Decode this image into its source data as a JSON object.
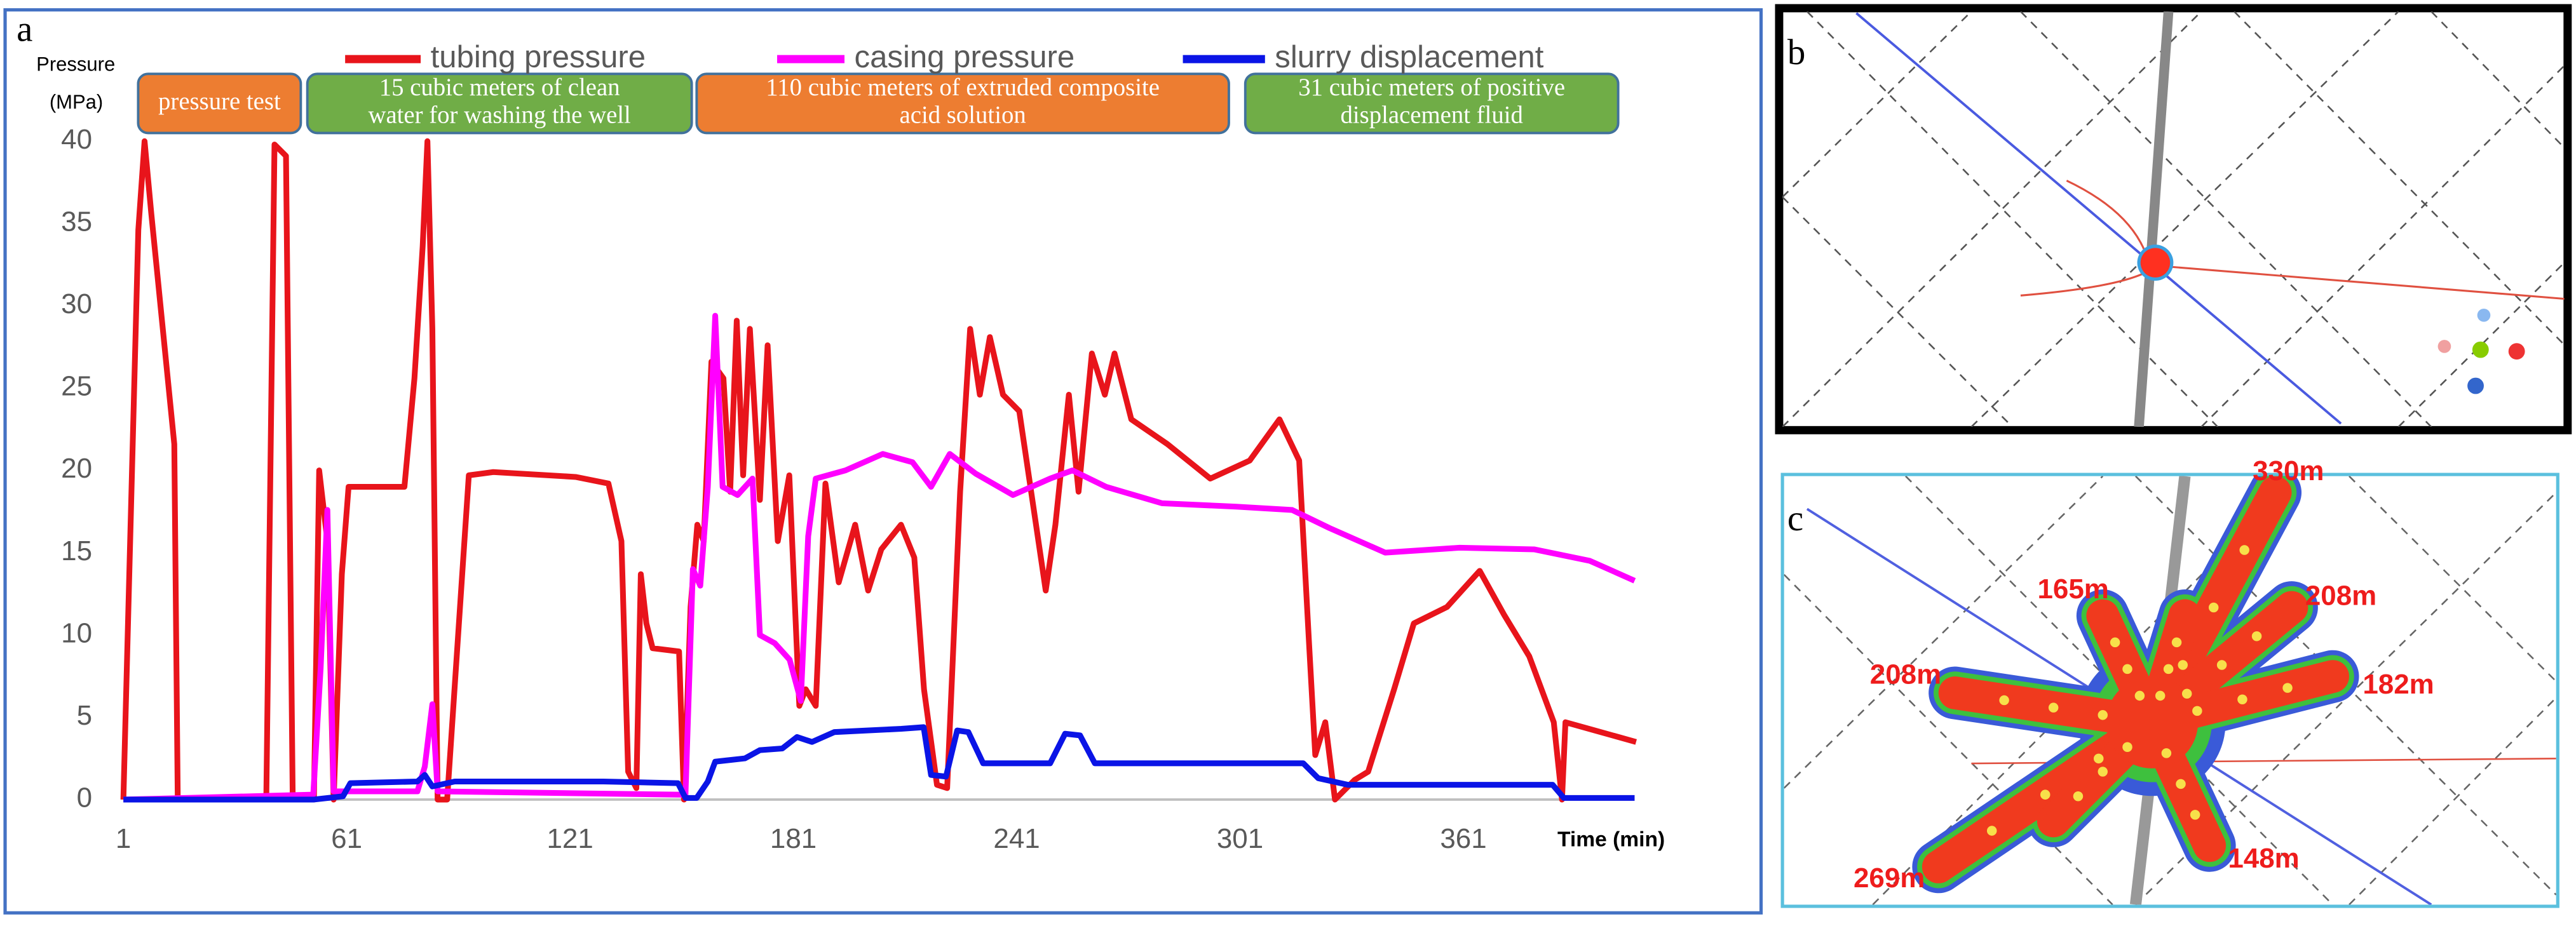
{
  "chart_data": {
    "type": "line",
    "panel": "a",
    "y_label": [
      "Pressure",
      "(MPa)"
    ],
    "x_label": "Time (min)",
    "xlim": [
      1,
      407
    ],
    "ylim": [
      0,
      40
    ],
    "xticks": [
      1,
      61,
      121,
      181,
      241,
      301,
      361
    ],
    "yticks": [
      0,
      5,
      10,
      15,
      20,
      25,
      30,
      35,
      40
    ],
    "phases": [
      {
        "lines": [
          "pressure test"
        ],
        "color": "#ed7d31"
      },
      {
        "lines": [
          "15 cubic meters of clean",
          "water for washing the well"
        ],
        "color": "#70ad47"
      },
      {
        "lines": [
          "110 cubic meters of extruded composite",
          "acid solution"
        ],
        "color": "#ed7d31"
      },
      {
        "lines": [
          "31 cubic meters of positive",
          "displacement fluid"
        ],
        "color": "#70ad47"
      }
    ],
    "series": [
      {
        "name": "tubing pressure",
        "color": "#e8141b",
        "x": [
          1,
          5,
          6.7,
          8.5,
          14.7,
          15.6,
          39.4,
          41.6,
          44.7,
          46.5,
          52.2,
          53.6,
          55.8,
          57.5,
          59.7,
          61.5,
          66,
          76.5,
          79.2,
          81.4,
          82.7,
          84,
          85.4,
          88,
          93.8,
          100.4,
          122.5,
          131.3,
          134.8,
          136.6,
          138.8,
          140,
          141.5,
          143.2,
          150.3,
          151.6,
          153.4,
          155.2,
          156.9,
          159,
          162.2,
          164,
          165.8,
          167.5,
          169.3,
          172,
          174.1,
          176.8,
          179.9,
          182.6,
          184.3,
          187,
          189.6,
          193.2,
          197.6,
          201.1,
          204.6,
          209.9,
          213.5,
          216.1,
          219.6,
          222.3,
          225.8,
          228.5,
          231.1,
          233.8,
          237.3,
          241.7,
          246.2,
          248.8,
          251.4,
          255,
          257.6,
          261.2,
          264.7,
          267.3,
          271.8,
          281.5,
          293,
          303.6,
          311.6,
          316.9,
          319.5,
          321.2,
          323.9,
          326.5,
          331.8,
          335.4,
          342.4,
          347.7,
          356.6,
          365.4,
          372,
          378.7,
          385.3,
          387.5,
          388.4,
          396.3,
          407.4
        ],
        "values": [
          0,
          34.6,
          40,
          35.6,
          21.6,
          0,
          0,
          39.8,
          39.1,
          0,
          0,
          20,
          15.7,
          0,
          13.7,
          19,
          19,
          19,
          25.6,
          33.6,
          40,
          28.6,
          0,
          0,
          19.7,
          19.9,
          19.6,
          19.2,
          15.7,
          1.7,
          0.7,
          13.7,
          10.7,
          9.2,
          9,
          0,
          11.7,
          16.7,
          15.7,
          26.6,
          25.6,
          18.7,
          29.1,
          19.7,
          28.6,
          18.2,
          27.6,
          15.7,
          19.7,
          5.7,
          6.7,
          5.7,
          19.2,
          13.2,
          16.7,
          12.7,
          15.2,
          16.7,
          14.7,
          6.7,
          0.9,
          0.7,
          18.7,
          28.6,
          24.6,
          28.1,
          24.6,
          23.6,
          16.7,
          12.7,
          16.7,
          24.6,
          18.7,
          27.1,
          24.6,
          27.1,
          23.1,
          21.6,
          19.5,
          20.6,
          23.1,
          20.6,
          9.7,
          2.7,
          4.7,
          0,
          1.2,
          1.7,
          6.7,
          10.7,
          11.7,
          13.9,
          11.2,
          8.7,
          4.7,
          0,
          4.7,
          4.2,
          3.5
        ]
      },
      {
        "name": "casing pressure",
        "color": "#ff00ff",
        "x": [
          1,
          52,
          54,
          55.8,
          57.5,
          80,
          82,
          84,
          85.4,
          150,
          152,
          154,
          156,
          158,
          160,
          162,
          166,
          170,
          172,
          176,
          180,
          183,
          185,
          187,
          195,
          205,
          213,
          218,
          223,
          230,
          240,
          250,
          256,
          265,
          280,
          300,
          315,
          325,
          340,
          360,
          380,
          395,
          407
        ],
        "values": [
          0,
          0.3,
          8,
          17.6,
          0.5,
          0.5,
          2,
          5.8,
          0.5,
          0.3,
          0.3,
          14,
          13,
          19,
          29.4,
          19,
          18.5,
          19.5,
          10,
          9.5,
          8.5,
          6,
          16,
          19.5,
          20,
          21,
          20.5,
          19,
          21,
          19.8,
          18.5,
          19.5,
          20,
          19,
          18,
          17.8,
          17.6,
          16.5,
          15,
          15.3,
          15.2,
          14.5,
          13.3
        ]
      },
      {
        "name": "slurry displacement",
        "color": "#0a14e6",
        "x": [
          1,
          52,
          60,
          62,
          80,
          82,
          84,
          90,
          130,
          150,
          152,
          155,
          158,
          160,
          168,
          172,
          178,
          182,
          186,
          192,
          210,
          216,
          218,
          222,
          225,
          228,
          232,
          250,
          254,
          258,
          262,
          318,
          322,
          330,
          385,
          388,
          407
        ],
        "values": [
          0,
          0,
          0.2,
          1,
          1.1,
          1.5,
          0.8,
          1.1,
          1.1,
          1,
          0.1,
          0.1,
          1.1,
          2.3,
          2.5,
          3,
          3.1,
          3.8,
          3.5,
          4.1,
          4.3,
          4.4,
          1.5,
          1.4,
          4.2,
          4.1,
          2.2,
          2.2,
          4,
          3.9,
          2.2,
          2.2,
          1.3,
          0.9,
          0.9,
          0.1,
          0.1
        ]
      }
    ]
  },
  "panels": {
    "b": {
      "label": "b"
    },
    "c": {
      "label": "c",
      "annotations": [
        "330m",
        "165m",
        "208m",
        "208m",
        "182m",
        "269m",
        "148m"
      ]
    }
  }
}
